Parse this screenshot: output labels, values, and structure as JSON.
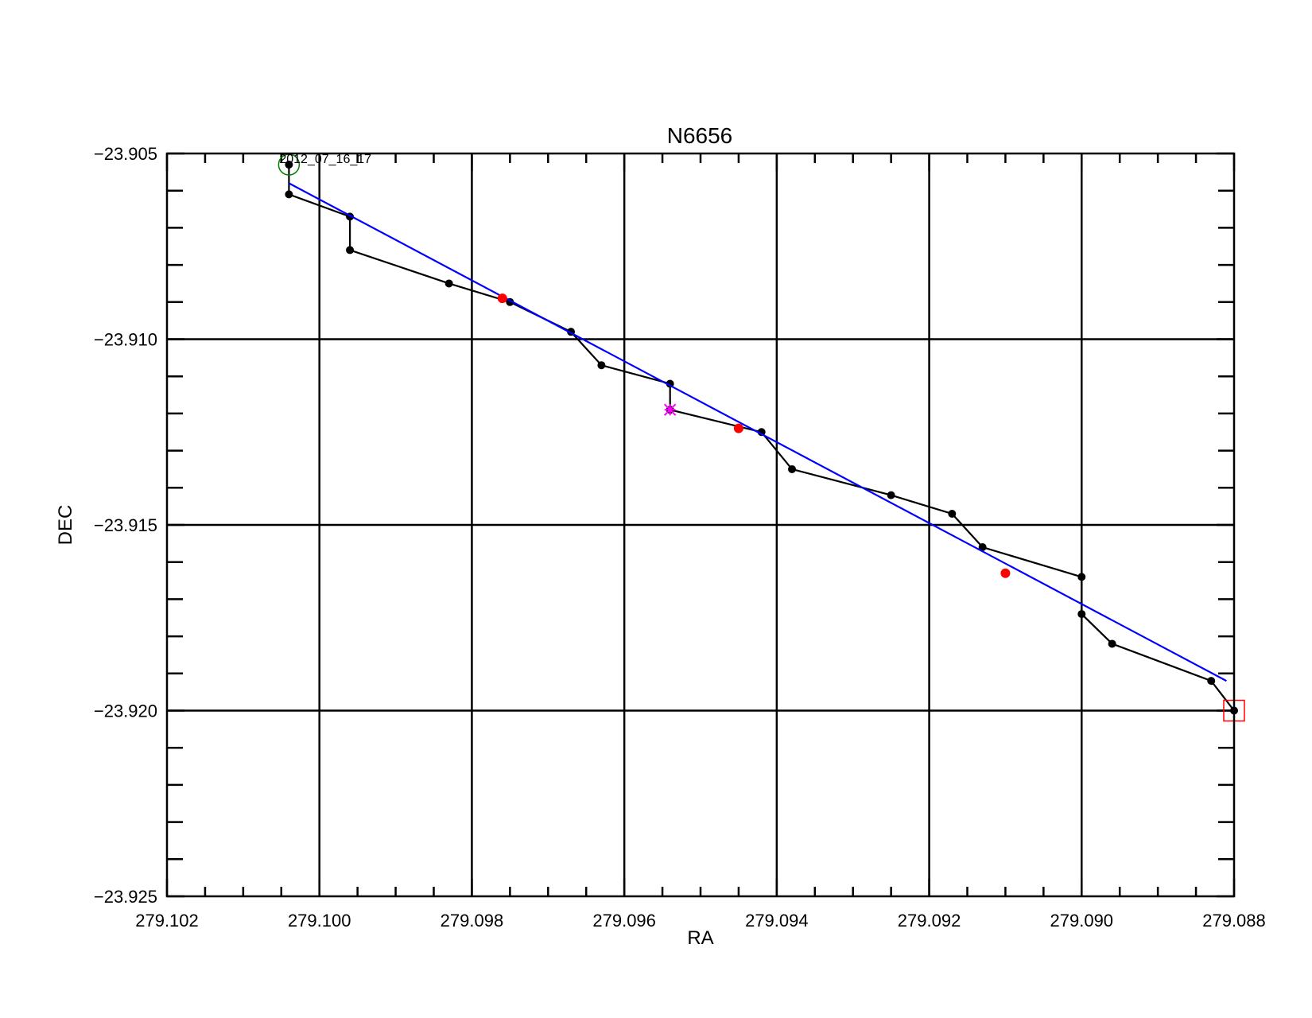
{
  "chart_data": {
    "type": "scatter",
    "title": "N6656",
    "xlabel": "RA",
    "ylabel": "DEC",
    "xlim": [
      279.102,
      279.088
    ],
    "ylim": [
      -23.925,
      -23.905
    ],
    "x_reversed": true,
    "grid": true,
    "x_ticks": [
      "279.102",
      "279.100",
      "279.098",
      "279.096",
      "279.094",
      "279.092",
      "279.090",
      "279.088"
    ],
    "y_ticks": [
      "−23.905",
      "−23.910",
      "−23.915",
      "−23.920",
      "−23.925"
    ],
    "x_tick_values": [
      279.102,
      279.1,
      279.098,
      279.096,
      279.094,
      279.092,
      279.09,
      279.088
    ],
    "y_tick_values": [
      -23.905,
      -23.91,
      -23.915,
      -23.92,
      -23.925
    ],
    "series": [
      {
        "style": "line+points",
        "color": "#000000",
        "points": [
          [
            279.1004,
            -23.9053
          ],
          [
            279.1004,
            -23.9061
          ],
          [
            279.0996,
            -23.9067
          ],
          [
            279.0996,
            -23.9076
          ],
          [
            279.0983,
            -23.9085
          ],
          [
            279.0975,
            -23.909
          ],
          [
            279.0967,
            -23.9098
          ],
          [
            279.0963,
            -23.9107
          ],
          [
            279.0954,
            -23.9112
          ],
          [
            279.0954,
            -23.9119
          ],
          [
            279.0942,
            -23.9125
          ],
          [
            279.0938,
            -23.9135
          ],
          [
            279.0925,
            -23.9142
          ],
          [
            279.0917,
            -23.9147
          ],
          [
            279.0913,
            -23.9156
          ],
          [
            279.09,
            -23.9164
          ],
          [
            279.09,
            -23.9174
          ],
          [
            279.0896,
            -23.9182
          ],
          [
            279.0883,
            -23.9192
          ],
          [
            279.088,
            -23.92
          ]
        ]
      },
      {
        "style": "line",
        "color": "#0000ff",
        "points": [
          [
            279.1004,
            -23.9058
          ],
          [
            279.0881,
            -23.9192
          ]
        ]
      },
      {
        "style": "points",
        "color": "#ff0000",
        "points": [
          [
            279.0976,
            -23.9089
          ],
          [
            279.0945,
            -23.9124
          ],
          [
            279.091,
            -23.9163
          ]
        ]
      }
    ],
    "markers": [
      {
        "shape": "star",
        "color": "#ff00ff",
        "point": [
          279.0954,
          -23.9119
        ]
      },
      {
        "shape": "circle",
        "color": "#008000",
        "point": [
          279.1004,
          -23.9053
        ]
      },
      {
        "shape": "square",
        "color": "#ff0000",
        "point": [
          279.088,
          -23.92
        ]
      }
    ],
    "annotations": [
      {
        "text": "2012_07_16_17",
        "point": [
          279.1004,
          -23.9053
        ]
      }
    ]
  }
}
